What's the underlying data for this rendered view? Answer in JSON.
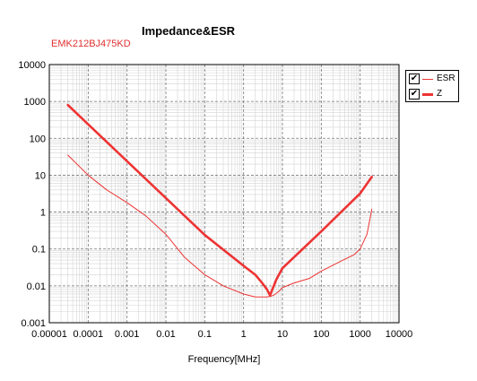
{
  "chart_data": {
    "type": "line",
    "title": "Impedance&ESR",
    "subtitle": "EMK212BJ475KD",
    "xlabel": "Frequency[MHz]",
    "ylabel": "",
    "x_scale": "log",
    "y_scale": "log",
    "xlim": [
      1e-05,
      10000
    ],
    "ylim": [
      0.001,
      10000
    ],
    "x_tick_labels": [
      "0.00001",
      "0.0001",
      "0.001",
      "0.01",
      "0.1",
      "1",
      "10",
      "100",
      "1000",
      "10000"
    ],
    "y_tick_labels": [
      "10000",
      "1000",
      "100",
      "10",
      "1",
      "0.1",
      "0.01",
      "0.001"
    ],
    "grid": true,
    "legend_position": "right",
    "series": [
      {
        "name": "ESR",
        "color": "#ee3333",
        "x": [
          3e-05,
          0.0001,
          0.0003,
          0.001,
          0.003,
          0.01,
          0.03,
          0.1,
          0.3,
          1,
          2,
          3,
          4,
          5,
          6,
          8,
          10,
          20,
          50,
          100,
          300,
          700,
          1000,
          1500,
          2000
        ],
        "y": [
          35,
          10,
          4,
          1.8,
          0.8,
          0.25,
          0.06,
          0.02,
          0.01,
          0.006,
          0.005,
          0.005,
          0.005,
          0.0052,
          0.0056,
          0.007,
          0.009,
          0.012,
          0.016,
          0.025,
          0.045,
          0.07,
          0.1,
          0.25,
          1.2
        ]
      },
      {
        "name": "Z",
        "color": "#ee3333",
        "x": [
          3e-05,
          0.0001,
          0.001,
          0.01,
          0.1,
          1,
          2,
          3,
          4,
          4.8,
          5.5,
          7,
          10,
          30,
          100,
          1000,
          2000
        ],
        "y": [
          800,
          240,
          24,
          2.4,
          0.24,
          0.035,
          0.02,
          0.012,
          0.008,
          0.0055,
          0.008,
          0.015,
          0.03,
          0.09,
          0.3,
          3.2,
          9
        ]
      }
    ]
  },
  "legend": {
    "esr_label": "ESR",
    "z_label": "Z",
    "check_glyph": "✔"
  }
}
